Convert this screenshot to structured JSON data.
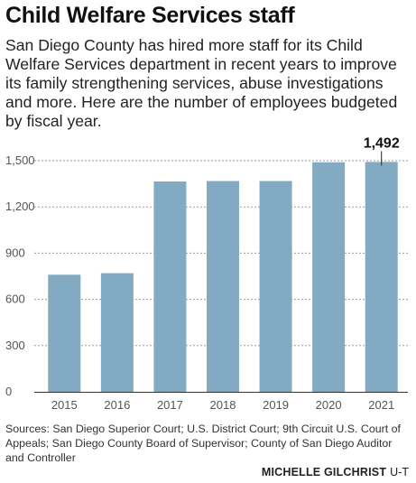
{
  "header": {
    "title": "Child Welfare Services staff",
    "subtitle": "San Diego County has hired more staff for its Child Welfare Services department in recent years to improve its family strengthening services, abuse investigations and more. Here are the number of employees budgeted by fiscal year."
  },
  "footer": {
    "sources": "Sources: San Diego Superior Court; U.S. District Court; 9th Circuit U.S. Court of Appeals; San Diego County Board of Supervisor; County of San Diego Auditor and Controller",
    "credit_name": "MICHELLE GILCHRIST",
    "credit_org": "U-T"
  },
  "colors": {
    "bar": "#82aac3",
    "grid": "#9a9a9a",
    "axis": "#333333",
    "tick_label": "#555555"
  },
  "chart_data": {
    "type": "bar",
    "categories": [
      "2015",
      "2016",
      "2017",
      "2018",
      "2019",
      "2020",
      "2021"
    ],
    "values": [
      760,
      770,
      1365,
      1368,
      1368,
      1490,
      1492
    ],
    "title": "",
    "xlabel": "",
    "ylabel": "",
    "ylim": [
      0,
      1500
    ],
    "yticks": [
      0,
      300,
      600,
      900,
      1200,
      1500
    ],
    "ytick_labels": [
      "0",
      "300",
      "600",
      "900",
      "1,200",
      "1,500"
    ],
    "grid": true,
    "grid_style": "dashed-horizontal",
    "annotations": [
      {
        "category": "2021",
        "text": "1,492"
      }
    ]
  }
}
